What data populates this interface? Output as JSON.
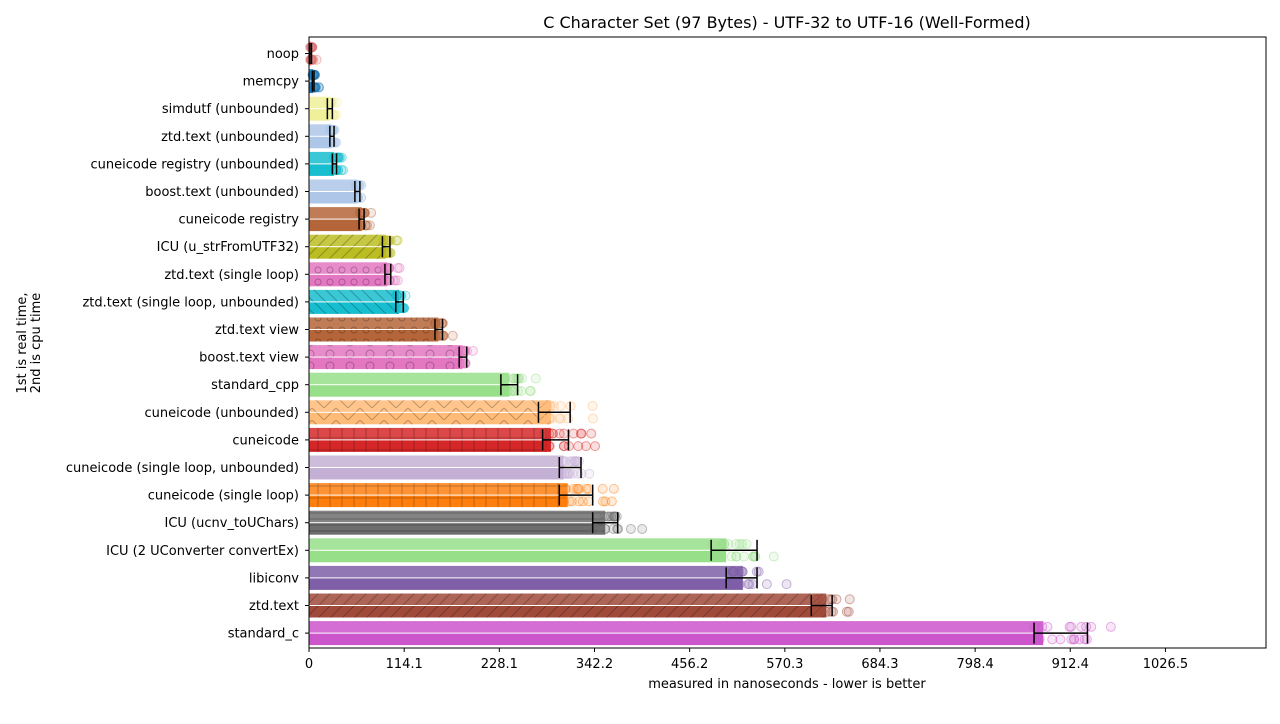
{
  "chart_data": {
    "type": "bar",
    "title": "C Character Set (97 Bytes) - UTF-32 to UTF-16 (Well-Formed)",
    "xlabel": "measured in nanoseconds - lower is better",
    "ylabel_line1": "1st is real time,",
    "ylabel_line2": "2nd is cpu time",
    "xlim": [
      0,
      1147
    ],
    "xticks": [
      "0",
      "114.1",
      "228.1",
      "342.2",
      "456.2",
      "570.3",
      "684.3",
      "798.4",
      "912.4",
      "1026.5"
    ],
    "xtick_values": [
      0,
      114.1,
      228.1,
      342.2,
      456.2,
      570.3,
      684.3,
      798.4,
      912.4,
      1026.5
    ],
    "series": [
      {
        "name": "real time"
      },
      {
        "name": "cpu time"
      }
    ],
    "categories": [
      {
        "label": "noop",
        "real": 2,
        "cpu": 2,
        "err_lo": 1,
        "err_hi": 3,
        "color": "#e07070",
        "pattern": "none"
      },
      {
        "label": "memcpy",
        "real": 5,
        "cpu": 5,
        "err_lo": 4,
        "err_hi": 6,
        "color": "#1f77b4",
        "pattern": "none"
      },
      {
        "label": "simdutf (unbounded)",
        "real": 25,
        "cpu": 25,
        "err_lo": 22,
        "err_hi": 28,
        "color": "#f0f09a",
        "pattern": "none"
      },
      {
        "label": "ztd.text (unbounded)",
        "real": 27,
        "cpu": 27,
        "err_lo": 25,
        "err_hi": 30,
        "color": "#aec7e8",
        "pattern": "none"
      },
      {
        "label": "cuneicode registry (unbounded)",
        "real": 30,
        "cpu": 30,
        "err_lo": 28,
        "err_hi": 33,
        "color": "#17becf",
        "pattern": "none"
      },
      {
        "label": "boost.text (unbounded)",
        "real": 58,
        "cpu": 58,
        "err_lo": 55,
        "err_hi": 61,
        "color": "#aec7e8",
        "pattern": "none"
      },
      {
        "label": "cuneicode registry",
        "real": 63,
        "cpu": 63,
        "err_lo": 60,
        "err_hi": 66,
        "color": "#b5653a",
        "pattern": "none"
      },
      {
        "label": "ICU (u_strFromUTF32)",
        "real": 92,
        "cpu": 92,
        "err_lo": 88,
        "err_hi": 97,
        "color": "#bcbd22",
        "pattern": "diag"
      },
      {
        "label": "ztd.text (single loop)",
        "real": 94,
        "cpu": 94,
        "err_lo": 91,
        "err_hi": 98,
        "color": "#e377c2",
        "pattern": "circles"
      },
      {
        "label": "ztd.text (single loop, unbounded)",
        "real": 108,
        "cpu": 108,
        "err_lo": 104,
        "err_hi": 113,
        "color": "#17becf",
        "pattern": "back"
      },
      {
        "label": "ztd.text view",
        "real": 155,
        "cpu": 155,
        "err_lo": 151,
        "err_hi": 160,
        "color": "#b5653a",
        "pattern": "circles"
      },
      {
        "label": "boost.text view",
        "real": 184,
        "cpu": 184,
        "err_lo": 180,
        "err_hi": 189,
        "color": "#e377c2",
        "pattern": "circles-big"
      },
      {
        "label": "standard_cpp",
        "real": 240,
        "cpu": 240,
        "err_lo": 230,
        "err_hi": 250,
        "color": "#98df8a",
        "pattern": "none"
      },
      {
        "label": "cuneicode (unbounded)",
        "real": 290,
        "cpu": 290,
        "err_lo": 275,
        "err_hi": 313,
        "color": "#ffbb78",
        "pattern": "zigzag"
      },
      {
        "label": "cuneicode",
        "real": 290,
        "cpu": 290,
        "err_lo": 280,
        "err_hi": 311,
        "color": "#d62728",
        "pattern": "grid"
      },
      {
        "label": "cuneicode (single loop, unbounded)",
        "real": 305,
        "cpu": 305,
        "err_lo": 300,
        "err_hi": 326,
        "color": "#c5b0d5",
        "pattern": "none"
      },
      {
        "label": "cuneicode (single loop)",
        "real": 310,
        "cpu": 310,
        "err_lo": 300,
        "err_hi": 340,
        "color": "#ff7f0e",
        "pattern": "grid"
      },
      {
        "label": "ICU (ucnv_toUChars)",
        "real": 355,
        "cpu": 355,
        "err_lo": 340,
        "err_hi": 370,
        "color": "#6e6e6e",
        "pattern": "hlines"
      },
      {
        "label": "ICU (2 UConverter convertEx)",
        "real": 500,
        "cpu": 500,
        "err_lo": 482,
        "err_hi": 537,
        "color": "#98df8a",
        "pattern": "none"
      },
      {
        "label": "libiconv",
        "real": 520,
        "cpu": 520,
        "err_lo": 500,
        "err_hi": 537,
        "color": "#7f5fa8",
        "pattern": "none"
      },
      {
        "label": "ztd.text",
        "real": 620,
        "cpu": 620,
        "err_lo": 602,
        "err_hi": 627,
        "color": "#a04a3a",
        "pattern": "slash"
      },
      {
        "label": "standard_c",
        "real": 880,
        "cpu": 880,
        "err_lo": 869,
        "err_hi": 933,
        "color": "#cc55cc",
        "pattern": "none"
      }
    ]
  }
}
